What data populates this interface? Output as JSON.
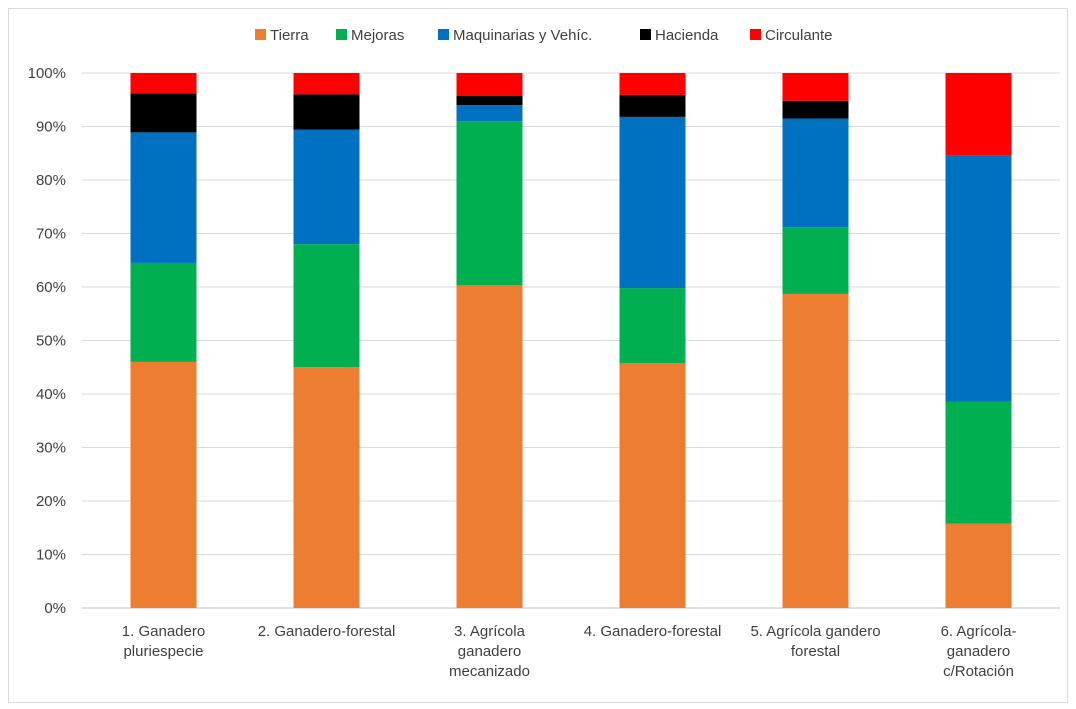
{
  "chart_data": {
    "type": "bar",
    "stacked": true,
    "percent": true,
    "categories": [
      [
        "1. Ganadero",
        "pluriespecie"
      ],
      [
        "2. Ganadero-forestal"
      ],
      [
        "3. Agrícola",
        "ganadero",
        "mecanizado"
      ],
      [
        "4. Ganadero-forestal"
      ],
      [
        "5. Agrícola gandero",
        "forestal"
      ],
      [
        "6. Agrícola-",
        "ganadero",
        "c/Rotación"
      ]
    ],
    "series": [
      {
        "name": "Tierra",
        "color": "#ED7D31",
        "values": [
          46,
          45,
          60.3,
          45.8,
          58.7,
          15.8
        ]
      },
      {
        "name": "Mejoras",
        "color": "#00B050",
        "values": [
          18.5,
          23,
          30.7,
          14,
          12.5,
          22.8
        ]
      },
      {
        "name": "Maquinarias y Vehíc.",
        "color": "#0070C0",
        "values": [
          24.4,
          21.4,
          3,
          32,
          20.3,
          46
        ]
      },
      {
        "name": "Hacienda",
        "color": "#000000",
        "values": [
          7.3,
          6.6,
          1.7,
          4.1,
          3.3,
          0
        ]
      },
      {
        "name": "Circulante",
        "color": "#FF0000",
        "values": [
          3.8,
          4,
          4.3,
          4.1,
          5.2,
          15.4
        ]
      }
    ],
    "y_ticks": [
      "0%",
      "10%",
      "20%",
      "30%",
      "40%",
      "50%",
      "60%",
      "70%",
      "80%",
      "90%",
      "100%"
    ],
    "ylim": [
      0,
      100
    ],
    "grid": true,
    "legend_position": "top"
  }
}
